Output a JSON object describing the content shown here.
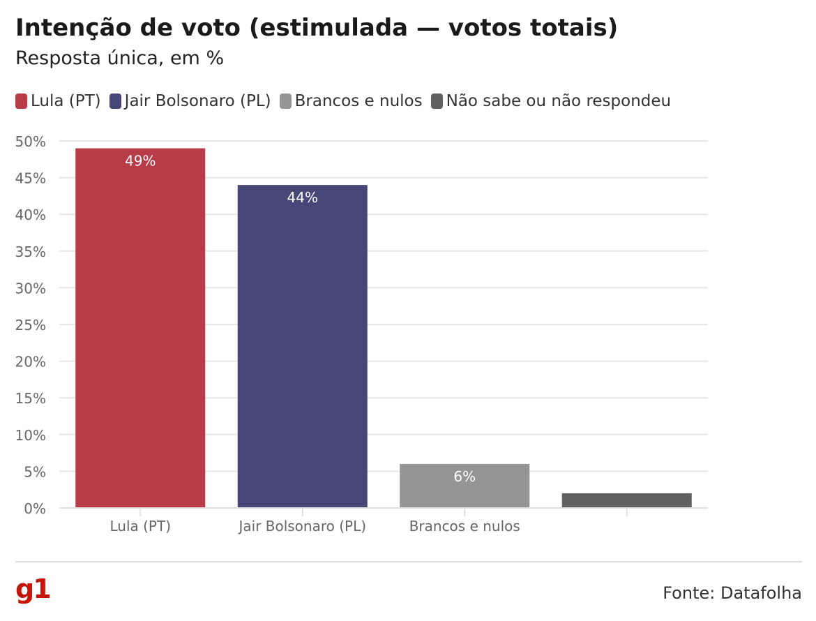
{
  "header": {
    "title": "Intenção de voto (estimulada — votos totais)",
    "subtitle": "Resposta única, em %"
  },
  "legend": [
    {
      "label": "Lula (PT)",
      "color": "#b83c48"
    },
    {
      "label": "Jair Bolsonaro (PL)",
      "color": "#464777"
    },
    {
      "label": "Brancos e nulos",
      "color": "#959595"
    },
    {
      "label": "Não sabe ou não respondeu",
      "color": "#606060"
    }
  ],
  "chart_data": {
    "type": "bar",
    "categories": [
      "Lula (PT)",
      "Jair Bolsonaro (PL)",
      "Brancos e nulos",
      ""
    ],
    "values": [
      49,
      44,
      6,
      2
    ],
    "data_labels": [
      "49%",
      "44%",
      "6%",
      ""
    ],
    "colors": [
      "#b83c48",
      "#464777",
      "#959595",
      "#606060"
    ],
    "ylim": [
      0,
      50
    ],
    "yticks": [
      0,
      5,
      10,
      15,
      20,
      25,
      30,
      35,
      40,
      45,
      50
    ],
    "ytick_labels": [
      "0%",
      "5%",
      "10%",
      "15%",
      "20%",
      "25%",
      "30%",
      "35%",
      "40%",
      "45%",
      "50%"
    ],
    "grid": true
  },
  "footer": {
    "logo": "g1",
    "source": "Fonte: Datafolha"
  }
}
